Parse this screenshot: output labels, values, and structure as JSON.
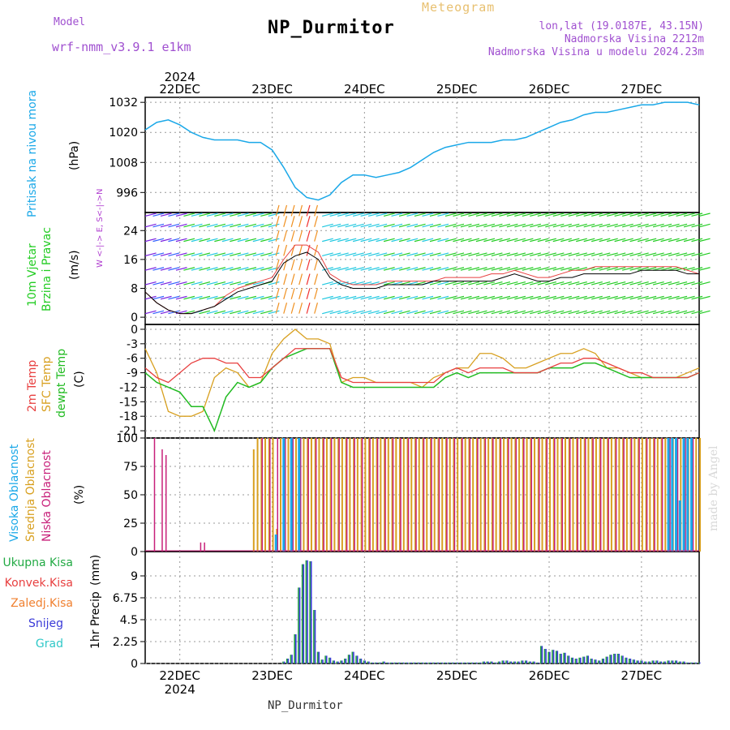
{
  "header": {
    "model_label": "Model",
    "model_name": "wrf-nmm_v3.9.1 e1km",
    "meteogram_label": "Meteogram",
    "station": "NP_Durmitor",
    "lonlat": "lon,lat (19.0187E, 43.15N)",
    "altitude": "Nadmorska Visina 2212m",
    "model_altitude": "Nadmorska Visina u modelu 2024.23m",
    "footer_station": "NP_Durmitor",
    "watermark": "made by Angel"
  },
  "colors": {
    "pressure": "#1aa8e8",
    "wind_green": "#22cc22",
    "temp2m": "#e84040",
    "sfc": "#d8a020",
    "dewpt": "#22bb22",
    "cloud_high": "#1aa8e8",
    "cloud_mid": "#d8a020",
    "cloud_low": "#c8207a",
    "precip": "#22a040",
    "snow": "#3a3ad8",
    "conv": "#e84040",
    "frz": "#f08030",
    "graupel": "#30c8c8",
    "wind_dir_label": "#b040d0"
  },
  "chart_data": [
    {
      "type": "line",
      "panel": "pressure",
      "title": "",
      "ylabel": "Pritisak na nivou mora",
      "unit": "(hPa)",
      "ylim": [
        988,
        1034
      ],
      "yticks": [
        996,
        1008,
        1020,
        1032
      ],
      "x": [
        0,
        3,
        6,
        9,
        12,
        15,
        18,
        21,
        24,
        27,
        30,
        33,
        36,
        39,
        42,
        45,
        48,
        51,
        54,
        57,
        60,
        63,
        66,
        69,
        72,
        75,
        78,
        81,
        84,
        87,
        90,
        93,
        96,
        99,
        102,
        105,
        108,
        111,
        114,
        117,
        120,
        123,
        126,
        129,
        132,
        135,
        138,
        141,
        144
      ],
      "series": [
        {
          "values": [
            1021,
            1024,
            1025,
            1023,
            1020,
            1018,
            1017,
            1017,
            1017,
            1016,
            1016,
            1013,
            1006,
            998,
            994,
            993,
            995,
            1000,
            1003,
            1003,
            1002,
            1003,
            1004,
            1006,
            1009,
            1012,
            1014,
            1015,
            1016,
            1016,
            1016,
            1017,
            1017,
            1018,
            1020,
            1022,
            1024,
            1025,
            1027,
            1028,
            1028,
            1029,
            1030,
            1031,
            1031,
            1032,
            1032,
            1032,
            1031
          ]
        }
      ]
    },
    {
      "type": "line",
      "panel": "wind",
      "ylabel": [
        "10m Vjetar",
        "Brzina i Pravac"
      ],
      "unit": "(m/s)",
      "direction_label": "W <-|-> E, S<-|->N",
      "ylim": [
        -2,
        29
      ],
      "yticks": [
        0,
        8,
        16,
        24
      ],
      "x": [
        0,
        3,
        6,
        9,
        12,
        15,
        18,
        21,
        24,
        27,
        30,
        33,
        36,
        39,
        42,
        45,
        48,
        51,
        54,
        57,
        60,
        63,
        66,
        69,
        72,
        75,
        78,
        81,
        84,
        87,
        90,
        93,
        96,
        99,
        102,
        105,
        108,
        111,
        114,
        117,
        120,
        123,
        126,
        129,
        132,
        135,
        138,
        141,
        144
      ],
      "series": [
        {
          "values": [
            7,
            4,
            2,
            1,
            1,
            2,
            3,
            5,
            7,
            8,
            9,
            10,
            15,
            17,
            18,
            16,
            11,
            9,
            8,
            8,
            8,
            9,
            9,
            9,
            9,
            10,
            10,
            10,
            10,
            10,
            10,
            11,
            12,
            11,
            10,
            10,
            11,
            11,
            12,
            12,
            12,
            12,
            12,
            13,
            13,
            13,
            13,
            12,
            12
          ]
        },
        {
          "values": [
            7,
            4,
            2,
            1,
            1,
            2,
            3,
            6,
            8,
            9,
            10,
            11,
            16,
            20,
            20,
            18,
            12,
            10,
            9,
            9,
            9,
            10,
            10,
            10,
            10,
            10,
            11,
            11,
            11,
            11,
            12,
            12,
            13,
            12,
            11,
            11,
            12,
            13,
            13,
            14,
            14,
            14,
            14,
            14,
            14,
            14,
            14,
            13,
            12
          ]
        }
      ]
    },
    {
      "type": "line",
      "panel": "temperature",
      "ylabel": [
        "2m Temp",
        "SFC Temp",
        "dewpt Temp"
      ],
      "unit": "(C)",
      "ylim": [
        -22.5,
        1
      ],
      "yticks": [
        0,
        -3,
        -6,
        -9,
        -12,
        -15,
        -18,
        -21
      ],
      "x": [
        0,
        3,
        6,
        9,
        12,
        15,
        18,
        21,
        24,
        27,
        30,
        33,
        36,
        39,
        42,
        45,
        48,
        51,
        54,
        57,
        60,
        63,
        66,
        69,
        72,
        75,
        78,
        81,
        84,
        87,
        90,
        93,
        96,
        99,
        102,
        105,
        108,
        111,
        114,
        117,
        120,
        123,
        126,
        129,
        132,
        135,
        138,
        141,
        144
      ],
      "series": [
        {
          "name": "2m Temp",
          "values": [
            -8,
            -10,
            -11,
            -9,
            -7,
            -6,
            -6,
            -7,
            -7,
            -10,
            -10,
            -8,
            -6,
            -4,
            -4,
            -4,
            -4,
            -10,
            -11,
            -11,
            -11,
            -11,
            -11,
            -11,
            -11,
            -11,
            -9,
            -8,
            -9,
            -8,
            -8,
            -8,
            -9,
            -9,
            -9,
            -8,
            -7,
            -7,
            -6,
            -6,
            -7,
            -8,
            -9,
            -9,
            -10,
            -10,
            -10,
            -10,
            -9
          ]
        },
        {
          "name": "SFC Temp",
          "values": [
            -4,
            -9,
            -17,
            -18,
            -18,
            -17,
            -10,
            -8,
            -9,
            -12,
            -11,
            -5,
            -2,
            0,
            -2,
            -2,
            -3,
            -11,
            -10,
            -10,
            -11,
            -11,
            -11,
            -11,
            -12,
            -10,
            -9,
            -8,
            -8,
            -5,
            -5,
            -6,
            -8,
            -8,
            -7,
            -6,
            -5,
            -5,
            -4,
            -5,
            -8,
            -8,
            -9,
            -10,
            -10,
            -10,
            -10,
            -9,
            -8
          ]
        },
        {
          "name": "dewpt Temp",
          "values": [
            -9,
            -11,
            -12,
            -13,
            -16,
            -16,
            -21,
            -14,
            -11,
            -12,
            -11,
            -8,
            -6,
            -5,
            -4,
            -4,
            -4,
            -11,
            -12,
            -12,
            -12,
            -12,
            -12,
            -12,
            -12,
            -12,
            -10,
            -9,
            -10,
            -9,
            -9,
            -9,
            -9,
            -9,
            -9,
            -8,
            -8,
            -8,
            -7,
            -7,
            -8,
            -9,
            -10,
            -10,
            -10,
            -10,
            -10,
            -10,
            -9
          ]
        }
      ]
    },
    {
      "type": "bar",
      "panel": "clouds",
      "ylabel": [
        "Visoka Oblacnost",
        "Srednja Oblacnost",
        "Niska Oblacnost"
      ],
      "unit": "(%)",
      "ylim": [
        0,
        100
      ],
      "yticks": [
        0,
        25,
        50,
        75,
        100
      ],
      "series": [
        {
          "name": "Visoka Oblacnost",
          "x": [
            34,
            36,
            38,
            40,
            136,
            137,
            138,
            139,
            140,
            141,
            142
          ],
          "values": [
            15,
            100,
            100,
            100,
            100,
            100,
            100,
            45,
            100,
            100,
            100
          ]
        },
        {
          "name": "Srednja Oblacnost",
          "x": [
            28,
            29,
            30,
            31,
            32,
            33,
            34,
            35,
            36,
            37,
            38,
            39,
            40,
            41,
            42,
            43,
            44,
            45,
            46,
            47,
            48,
            49,
            50,
            51,
            52,
            53,
            54,
            55,
            56,
            57,
            58,
            59,
            60,
            61,
            62,
            63,
            64,
            65,
            66,
            67,
            68,
            69,
            70,
            71,
            72,
            73,
            74,
            75,
            76,
            77,
            78,
            79,
            80,
            81,
            82,
            83,
            84,
            85,
            86,
            87,
            88,
            89,
            90,
            91,
            92,
            93,
            94,
            95,
            96,
            97,
            98,
            99,
            100,
            101,
            102,
            103,
            104,
            105,
            106,
            107,
            108,
            109,
            110,
            111,
            112,
            113,
            114,
            115,
            116,
            117,
            118,
            119,
            120,
            121,
            122,
            123,
            124,
            125,
            126,
            127,
            128,
            129,
            130,
            131,
            132,
            133,
            134,
            135,
            136,
            137,
            138,
            139,
            140,
            141,
            142,
            143,
            144
          ],
          "values": [
            90,
            100,
            100,
            100,
            100,
            100,
            20,
            100,
            100,
            100,
            100,
            100,
            100,
            100,
            100,
            100,
            100,
            100,
            100,
            100,
            100,
            100,
            100,
            100,
            100,
            100,
            100,
            100,
            100,
            100,
            100,
            100,
            100,
            100,
            100,
            100,
            100,
            100,
            100,
            100,
            100,
            100,
            100,
            100,
            100,
            100,
            100,
            100,
            100,
            100,
            100,
            100,
            100,
            100,
            100,
            100,
            100,
            100,
            100,
            100,
            100,
            100,
            100,
            100,
            100,
            100,
            100,
            100,
            100,
            100,
            100,
            100,
            100,
            100,
            100,
            100,
            100,
            100,
            100,
            100,
            100,
            100,
            100,
            100,
            100,
            100,
            100,
            100,
            100,
            100,
            100,
            100,
            100,
            100,
            100,
            100,
            100,
            100,
            100,
            100,
            100,
            100,
            100,
            100,
            100,
            100,
            100,
            100,
            100,
            100,
            100,
            100,
            100,
            100,
            100,
            100,
            100
          ]
        },
        {
          "name": "Niska Oblacnost",
          "x": [
            2,
            4,
            5,
            14,
            15,
            30,
            32,
            34,
            36,
            38,
            40,
            42,
            44,
            46,
            48,
            50,
            52,
            54,
            56,
            58,
            60,
            62,
            64,
            66,
            68,
            70,
            72,
            74,
            76,
            78,
            80,
            82,
            84,
            86,
            88,
            90,
            92,
            94,
            96,
            98,
            100,
            102,
            104,
            106,
            108,
            110,
            112,
            114,
            116,
            118,
            120,
            122,
            124,
            126,
            128,
            130,
            132,
            134,
            136,
            138,
            140,
            142
          ],
          "values": [
            100,
            90,
            85,
            8,
            8,
            100,
            100,
            100,
            100,
            100,
            100,
            100,
            100,
            100,
            100,
            100,
            100,
            100,
            100,
            100,
            100,
            100,
            100,
            100,
            100,
            100,
            100,
            100,
            100,
            100,
            100,
            100,
            100,
            100,
            100,
            100,
            100,
            100,
            100,
            100,
            100,
            100,
            100,
            100,
            100,
            100,
            100,
            100,
            100,
            100,
            100,
            100,
            100,
            100,
            100,
            100,
            100,
            100,
            100,
            100,
            100,
            100
          ]
        }
      ]
    },
    {
      "type": "bar",
      "panel": "precip",
      "ylabel": "1hr Precip",
      "unit": "(mm)",
      "legend": [
        "Ukupna Kisa",
        "Konvek.Kisa",
        "Zaledj.Kisa",
        "Snijeg",
        "Grad"
      ],
      "ylim": [
        0,
        11.5
      ],
      "yticks": [
        0,
        2.25,
        4.5,
        6.75,
        9
      ],
      "x": [
        36,
        37,
        38,
        39,
        40,
        41,
        42,
        43,
        44,
        45,
        46,
        47,
        48,
        49,
        50,
        51,
        52,
        53,
        54,
        55,
        56,
        57,
        58,
        59,
        60,
        61,
        62,
        63,
        64,
        65,
        66,
        67,
        68,
        69,
        70,
        71,
        72,
        73,
        74,
        75,
        76,
        77,
        78,
        79,
        80,
        81,
        82,
        83,
        84,
        85,
        86,
        87,
        88,
        89,
        90,
        91,
        92,
        93,
        94,
        95,
        96,
        97,
        98,
        99,
        100,
        101,
        102,
        103,
        104,
        105,
        106,
        107,
        108,
        109,
        110,
        111,
        112,
        113,
        114,
        115,
        116,
        117,
        118,
        119,
        120,
        121,
        122,
        123,
        124,
        125,
        126,
        127,
        128,
        129,
        130,
        131,
        132,
        133,
        134,
        135,
        136,
        137,
        138,
        139,
        140,
        141,
        142,
        143,
        144
      ],
      "series": [
        {
          "name": "Ukupna Kisa",
          "values": [
            0.2,
            0.5,
            0.9,
            3.0,
            7.8,
            10.2,
            10.6,
            10.5,
            5.5,
            1.2,
            0.4,
            0.8,
            0.6,
            0.3,
            0.2,
            0.3,
            0.5,
            0.9,
            1.2,
            0.8,
            0.5,
            0.3,
            0.2,
            0.1,
            0.1,
            0.1,
            0.2,
            0.1,
            0.1,
            0.1,
            0.1,
            0.1,
            0.1,
            0.1,
            0.1,
            0.1,
            0.1,
            0.1,
            0.1,
            0.1,
            0.1,
            0.1,
            0.1,
            0.1,
            0.1,
            0.1,
            0.1,
            0.1,
            0.1,
            0.1,
            0.1,
            0.1,
            0.2,
            0.2,
            0.2,
            0.1,
            0.2,
            0.3,
            0.3,
            0.2,
            0.2,
            0.2,
            0.3,
            0.3,
            0.2,
            0.2,
            0.1,
            1.8,
            1.5,
            1.2,
            1.4,
            1.3,
            1.0,
            1.1,
            0.8,
            0.6,
            0.5,
            0.6,
            0.7,
            0.8,
            0.5,
            0.4,
            0.3,
            0.5,
            0.7,
            0.9,
            1.0,
            1.0,
            0.8,
            0.6,
            0.5,
            0.4,
            0.3,
            0.3,
            0.2,
            0.2,
            0.3,
            0.3,
            0.2,
            0.2,
            0.3,
            0.3,
            0.3,
            0.2,
            0.2,
            0.1,
            0.1,
            0.1,
            0.1
          ]
        }
      ]
    }
  ],
  "x_axis": {
    "day_ticks": [
      "22DEC",
      "23DEC",
      "24DEC",
      "25DEC",
      "26DEC",
      "27DEC"
    ],
    "year": "2024"
  }
}
